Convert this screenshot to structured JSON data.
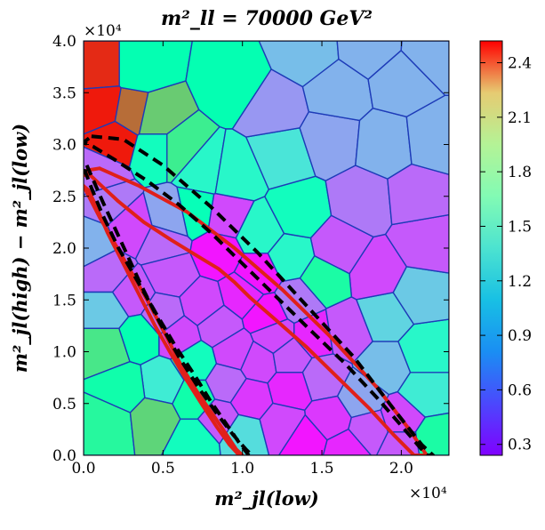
{
  "chart_data": {
    "type": "heatmap",
    "title": "m²_ll = 70000 GeV²",
    "xlabel": "m²_jl(low)",
    "ylabel": "m²_jl(high) − m²_jl(low)",
    "x_scale_label": "×10⁴",
    "y_scale_label": "×10⁴",
    "xlim": [
      0,
      2.3
    ],
    "ylim": [
      0,
      4.0
    ],
    "xticks": [
      0.0,
      0.5,
      1.0,
      1.5,
      2.0
    ],
    "xtick_labels": [
      "0.0",
      "0.5",
      "1.0",
      "1.5",
      "2.0"
    ],
    "yticks": [
      0.0,
      0.5,
      1.0,
      1.5,
      2.0,
      2.5,
      3.0,
      3.5,
      4.0
    ],
    "ytick_labels": [
      "0.0",
      "0.5",
      "1.0",
      "1.5",
      "2.0",
      "2.5",
      "3.0",
      "3.5",
      "4.0"
    ],
    "colorbar": {
      "colormap": "rainbow",
      "range": [
        0.24,
        2.52
      ],
      "ticks": [
        0.3,
        0.6,
        0.9,
        1.2,
        1.5,
        1.8,
        2.1,
        2.4
      ],
      "tick_labels": [
        "0.3",
        "0.6",
        "0.9",
        "1.2",
        "1.5",
        "1.8",
        "2.1",
        "2.4"
      ]
    },
    "voronoi_cells": [
      [
        0.1,
        3.75,
        2.4
      ],
      [
        0.12,
        3.35,
        2.45
      ],
      [
        0.2,
        3.05,
        2.45
      ],
      [
        0.3,
        3.3,
        2.2
      ],
      [
        0.45,
        3.25,
        1.85
      ],
      [
        0.6,
        2.95,
        1.65
      ],
      [
        0.35,
        3.75,
        1.4
      ],
      [
        0.95,
        3.6,
        1.4
      ],
      [
        0.45,
        2.95,
        1.3
      ],
      [
        0.75,
        2.75,
        1.2
      ],
      [
        0.7,
        2.35,
        1.35
      ],
      [
        0.55,
        2.3,
        0.75
      ],
      [
        0.9,
        2.3,
        0.45
      ],
      [
        0.5,
        2.05,
        0.55
      ],
      [
        0.3,
        2.2,
        0.45
      ],
      [
        0.15,
        2.45,
        0.6
      ],
      [
        0.1,
        2.7,
        0.55
      ],
      [
        0.05,
        2.05,
        0.8
      ],
      [
        0.15,
        1.75,
        0.55
      ],
      [
        0.3,
        1.55,
        0.5
      ],
      [
        0.55,
        1.75,
        0.5
      ],
      [
        0.85,
        1.95,
        0.3
      ],
      [
        1.1,
        1.75,
        0.3
      ],
      [
        1.0,
        1.55,
        0.35
      ],
      [
        0.75,
        1.45,
        0.45
      ],
      [
        0.5,
        1.35,
        0.55
      ],
      [
        0.15,
        1.4,
        0.9
      ],
      [
        0.15,
        1.05,
        1.7
      ],
      [
        0.35,
        1.15,
        1.4
      ],
      [
        0.6,
        1.15,
        0.45
      ],
      [
        0.85,
        1.25,
        0.5
      ],
      [
        1.15,
        1.35,
        0.3
      ],
      [
        1.35,
        1.5,
        0.6
      ],
      [
        1.2,
        1.15,
        0.45
      ],
      [
        0.95,
        1.0,
        0.45
      ],
      [
        0.7,
        0.9,
        1.3
      ],
      [
        0.5,
        0.7,
        1.1
      ],
      [
        0.25,
        0.65,
        1.45
      ],
      [
        0.15,
        0.3,
        1.55
      ],
      [
        0.45,
        0.35,
        1.8
      ],
      [
        0.7,
        0.55,
        1.45
      ],
      [
        0.9,
        0.7,
        0.55
      ],
      [
        1.1,
        0.9,
        0.45
      ],
      [
        1.3,
        0.95,
        0.5
      ],
      [
        1.45,
        1.15,
        0.35
      ],
      [
        1.65,
        1.2,
        0.5
      ],
      [
        1.5,
        0.75,
        0.55
      ],
      [
        1.3,
        0.65,
        0.35
      ],
      [
        1.05,
        0.55,
        0.4
      ],
      [
        0.85,
        0.35,
        0.5
      ],
      [
        0.7,
        0.15,
        1.3
      ],
      [
        1.0,
        0.2,
        1.0
      ],
      [
        1.25,
        0.3,
        0.45
      ],
      [
        1.4,
        0.15,
        0.3
      ],
      [
        1.55,
        0.35,
        0.4
      ],
      [
        1.75,
        0.55,
        0.75
      ],
      [
        1.9,
        0.85,
        0.85
      ],
      [
        1.8,
        0.25,
        0.5
      ],
      [
        2.0,
        0.35,
        0.45
      ],
      [
        2.15,
        0.6,
        1.1
      ],
      [
        2.2,
        0.15,
        1.5
      ],
      [
        2.0,
        0.1,
        0.5
      ],
      [
        1.65,
        0.05,
        0.35
      ],
      [
        2.15,
        1.0,
        1.2
      ],
      [
        1.9,
        1.35,
        0.95
      ],
      [
        2.1,
        1.55,
        0.9
      ],
      [
        1.85,
        1.75,
        0.45
      ],
      [
        2.15,
        2.05,
        0.5
      ],
      [
        1.6,
        2.0,
        0.5
      ],
      [
        1.5,
        1.7,
        1.5
      ],
      [
        1.3,
        1.9,
        1.2
      ],
      [
        1.1,
        2.15,
        1.2
      ],
      [
        1.35,
        2.35,
        1.3
      ],
      [
        1.75,
        2.45,
        0.6
      ],
      [
        2.1,
        2.5,
        0.55
      ],
      [
        0.95,
        2.7,
        1.2
      ],
      [
        1.25,
        2.9,
        1.05
      ],
      [
        1.55,
        3.05,
        0.75
      ],
      [
        1.9,
        3.0,
        0.8
      ],
      [
        2.2,
        3.05,
        0.8
      ],
      [
        1.2,
        3.35,
        0.7
      ],
      [
        1.6,
        3.5,
        0.8
      ],
      [
        2.0,
        3.6,
        0.8
      ],
      [
        1.4,
        3.9,
        0.85
      ],
      [
        1.8,
        3.95,
        0.8
      ],
      [
        2.2,
        3.9,
        0.8
      ]
    ],
    "overlay_curves": [
      {
        "name": "red-outer",
        "style": "solid",
        "color": "#e0201a",
        "x": [
          0.1,
          0.35,
          0.65,
          0.95,
          1.25,
          1.55,
          1.85,
          2.05,
          2.16,
          2.15,
          2.08,
          1.95,
          1.8,
          1.6,
          1.4,
          1.2,
          1.05,
          0.95,
          0.85,
          0.72,
          0.55,
          0.38,
          0.22,
          0.1,
          0.03,
          0.0,
          0.02,
          0.1
        ],
        "y": [
          2.77,
          2.6,
          2.35,
          2.0,
          1.6,
          1.15,
          0.65,
          0.25,
          0.0,
          0.0,
          0.0,
          0.2,
          0.45,
          0.75,
          1.05,
          1.32,
          1.52,
          1.67,
          1.8,
          1.92,
          2.08,
          2.25,
          2.45,
          2.62,
          2.72,
          2.7,
          2.75,
          2.77
        ]
      },
      {
        "name": "red-inner",
        "style": "solid",
        "color": "#e0201a",
        "x": [
          0.0,
          0.1,
          0.25,
          0.4,
          0.52,
          0.62,
          0.72,
          0.82,
          0.9,
          0.96,
          1.0,
          0.98,
          0.92,
          0.84,
          0.75,
          0.65,
          0.55,
          0.45,
          0.35,
          0.25,
          0.15,
          0.08,
          0.03,
          0.0
        ],
        "y": [
          2.6,
          2.3,
          1.9,
          1.5,
          1.15,
          0.85,
          0.6,
          0.38,
          0.2,
          0.06,
          0.0,
          0.0,
          0.1,
          0.27,
          0.48,
          0.72,
          0.98,
          1.25,
          1.55,
          1.85,
          2.15,
          2.4,
          2.56,
          2.6
        ]
      },
      {
        "name": "black-dashed-outer",
        "style": "dashed",
        "color": "#000000",
        "x": [
          0.05,
          0.25,
          0.5,
          0.8,
          1.1,
          1.4,
          1.7,
          1.95,
          2.13,
          2.2,
          2.16,
          2.02,
          1.85,
          1.65,
          1.42,
          1.2,
          1.0,
          0.8,
          0.6,
          0.4,
          0.2,
          0.06,
          0.0,
          0.05
        ],
        "y": [
          3.08,
          3.05,
          2.8,
          2.4,
          1.95,
          1.45,
          0.95,
          0.45,
          0.1,
          0.0,
          0.0,
          0.25,
          0.55,
          0.88,
          1.22,
          1.55,
          1.85,
          2.15,
          2.42,
          2.65,
          2.85,
          2.98,
          3.02,
          3.08
        ]
      },
      {
        "name": "black-dashed-inner",
        "style": "dashed",
        "color": "#000000",
        "x": [
          0.02,
          0.12,
          0.24,
          0.36,
          0.48,
          0.6,
          0.72,
          0.84,
          0.94,
          1.02,
          1.06,
          1.04,
          0.98,
          0.9,
          0.8,
          0.7,
          0.58,
          0.46,
          0.34,
          0.22,
          0.12,
          0.05,
          0.01,
          0.02
        ],
        "y": [
          2.8,
          2.45,
          2.05,
          1.65,
          1.28,
          0.95,
          0.66,
          0.4,
          0.2,
          0.06,
          0.0,
          0.0,
          0.12,
          0.3,
          0.52,
          0.77,
          1.05,
          1.36,
          1.68,
          2.0,
          2.32,
          2.58,
          2.74,
          2.8
        ]
      }
    ]
  }
}
